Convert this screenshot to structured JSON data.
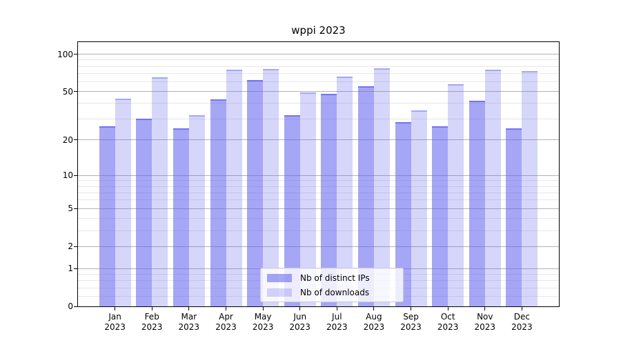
{
  "title": "wppi 2023",
  "chart_data": {
    "type": "bar",
    "title": "wppi 2023",
    "year_label": "2023",
    "categories": [
      "Jan",
      "Feb",
      "Mar",
      "Apr",
      "May",
      "Jun",
      "Jul",
      "Aug",
      "Sep",
      "Oct",
      "Nov",
      "Dec"
    ],
    "series": [
      {
        "name": "Nb of distinct IPs",
        "fill": "rgba(97,97,239,0.56)",
        "edge": "rgba(97,97,239,0.72)",
        "values": [
          26,
          30,
          25,
          43,
          62,
          32,
          48,
          55,
          28,
          26,
          42,
          25
        ]
      },
      {
        "name": "Nb of downloads",
        "fill": "rgba(97,97,239,0.26)",
        "edge": "rgba(97,97,239,0.42)",
        "values": [
          44,
          65,
          32,
          75,
          76,
          49,
          66,
          77,
          35,
          57,
          75,
          73
        ]
      }
    ],
    "yscale": "log1p",
    "ylim": [
      0,
      125
    ],
    "y_ticks": [
      0,
      1,
      2,
      5,
      10,
      20,
      50,
      100
    ],
    "y_minor_ticks": [
      0.2,
      0.4,
      0.6,
      0.8,
      3,
      4,
      6,
      7,
      8,
      9,
      30,
      40,
      60,
      70,
      80,
      90
    ],
    "grid": true,
    "legend_position": "lower center",
    "colors": {
      "major_grid": "#b2b2b2",
      "minor_grid": "#e7e7e7",
      "spine": "#000000",
      "text": "#000000"
    }
  }
}
